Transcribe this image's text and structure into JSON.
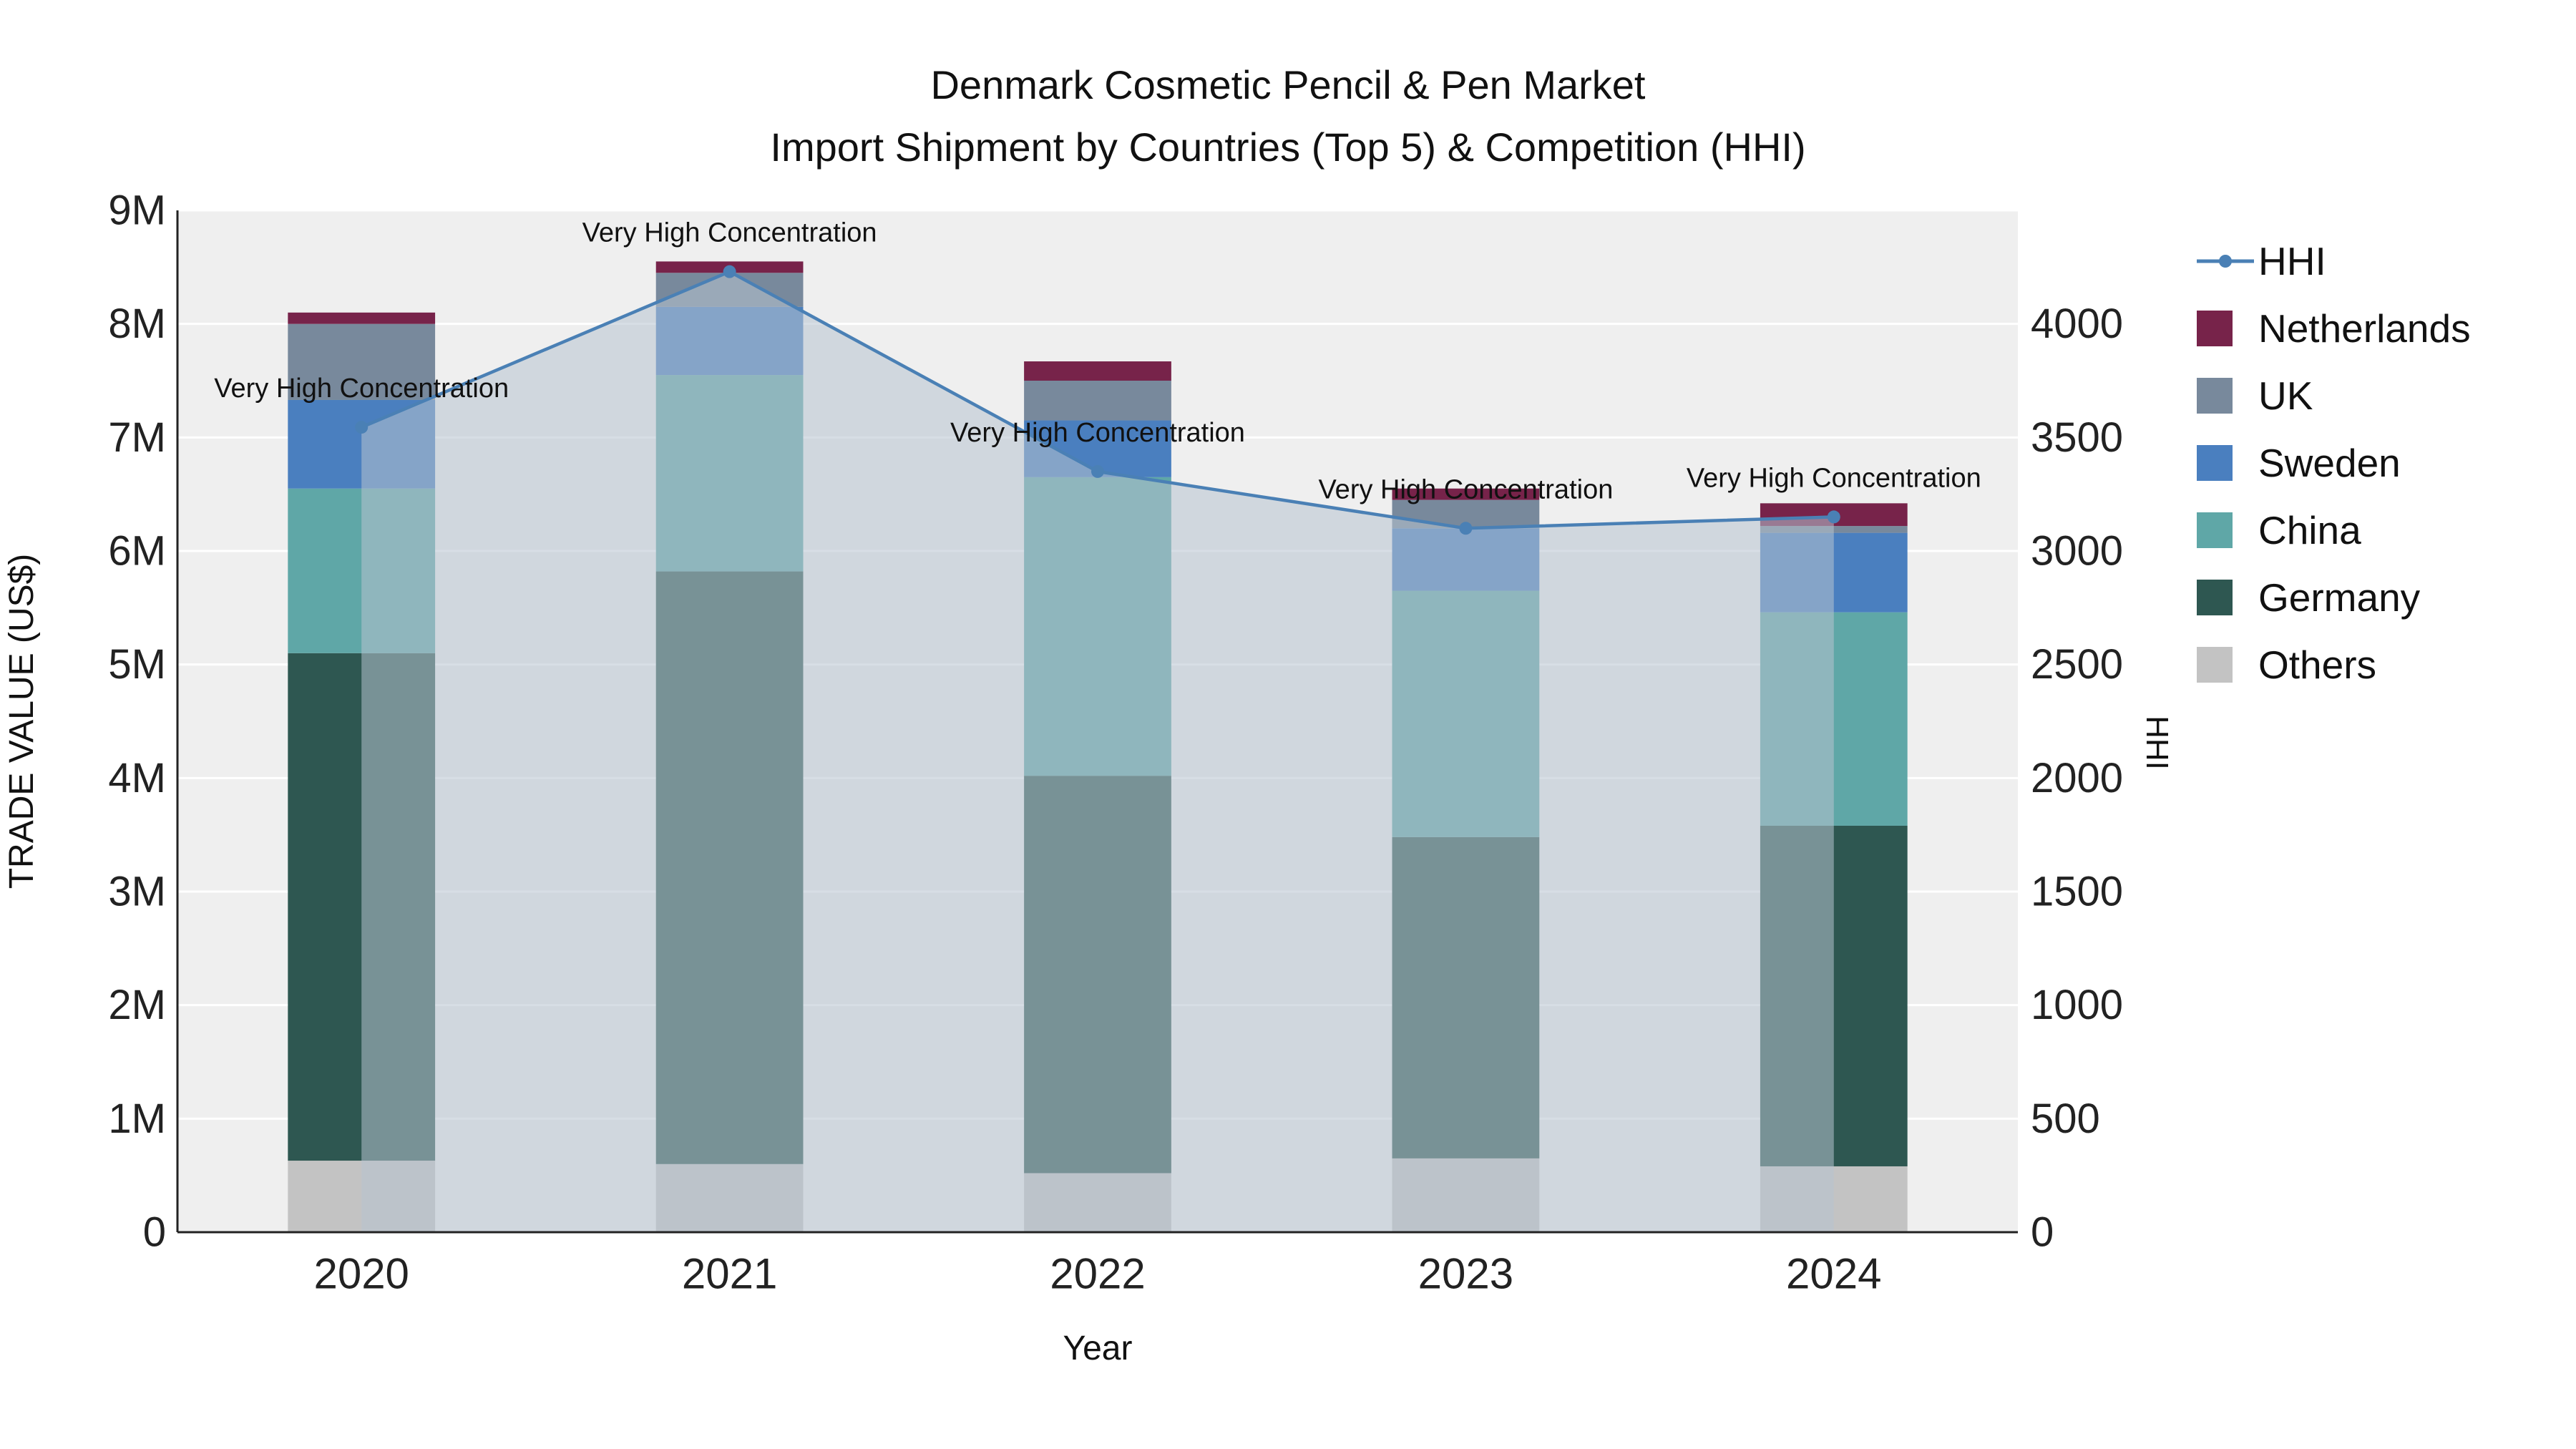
{
  "title": {
    "line1": "Denmark Cosmetic Pencil & Pen Market",
    "line2": "Import Shipment by Countries (Top 5) & Competition (HHI)"
  },
  "chart_data": {
    "type": "bar",
    "subtype": "stacked-bar-with-line-area",
    "categories": [
      "2020",
      "2021",
      "2022",
      "2023",
      "2024"
    ],
    "bar_value_unit": "million US$",
    "stack_order_bottom_to_top": [
      "Others",
      "Germany",
      "China",
      "Sweden",
      "UK",
      "Netherlands"
    ],
    "series": [
      {
        "name": "Others",
        "color": "#c3c3c3",
        "values": [
          0.63,
          0.6,
          0.52,
          0.65,
          0.58
        ]
      },
      {
        "name": "Germany",
        "color": "#2e5751",
        "values": [
          4.47,
          5.22,
          3.5,
          2.83,
          3.0
        ]
      },
      {
        "name": "China",
        "color": "#5fa7a7",
        "values": [
          1.45,
          1.73,
          2.63,
          2.17,
          1.88
        ]
      },
      {
        "name": "Sweden",
        "color": "#4a7fbf",
        "values": [
          0.78,
          0.6,
          0.5,
          0.55,
          0.7
        ]
      },
      {
        "name": "UK",
        "color": "#78899c",
        "values": [
          0.67,
          0.3,
          0.35,
          0.25,
          0.06
        ]
      },
      {
        "name": "Netherlands",
        "color": "#77234a",
        "values": [
          0.1,
          0.1,
          0.17,
          0.1,
          0.2
        ]
      }
    ],
    "line_series": {
      "name": "HHI",
      "color": "#4a80b5",
      "area_fill": "#b7c3cf",
      "area_opacity": 0.55,
      "values": [
        3545,
        4230,
        3350,
        3100,
        3150
      ]
    },
    "annotations": [
      {
        "x": "2020",
        "label": "Very High Concentration"
      },
      {
        "x": "2021",
        "label": "Very High Concentration"
      },
      {
        "x": "2022",
        "label": "Very High Concentration"
      },
      {
        "x": "2023",
        "label": "Very High Concentration"
      },
      {
        "x": "2024",
        "label": "Very High Concentration"
      }
    ],
    "xlabel": "Year",
    "ylabel": "TRADE VALUE (US$)",
    "y2label": "HHI",
    "ylim": [
      0,
      9
    ],
    "y_tick_step": 1,
    "y_tick_suffix": "M",
    "y2lim": [
      0,
      4500
    ],
    "y2_tick_step": 500,
    "y2_tick_max": 4000,
    "legend": [
      {
        "name": "HHI",
        "type": "line",
        "color": "#4a80b5"
      },
      {
        "name": "Netherlands",
        "type": "square",
        "color": "#77234a"
      },
      {
        "name": "UK",
        "type": "square",
        "color": "#78899c"
      },
      {
        "name": "Sweden",
        "type": "square",
        "color": "#4a7fbf"
      },
      {
        "name": "China",
        "type": "square",
        "color": "#5fa7a7"
      },
      {
        "name": "Germany",
        "type": "square",
        "color": "#2e5751"
      },
      {
        "name": "Others",
        "type": "square",
        "color": "#c3c3c3"
      }
    ],
    "plot_bg": "#efefef",
    "grid_color": "#ffffff",
    "axis_line_color": "#222222"
  }
}
